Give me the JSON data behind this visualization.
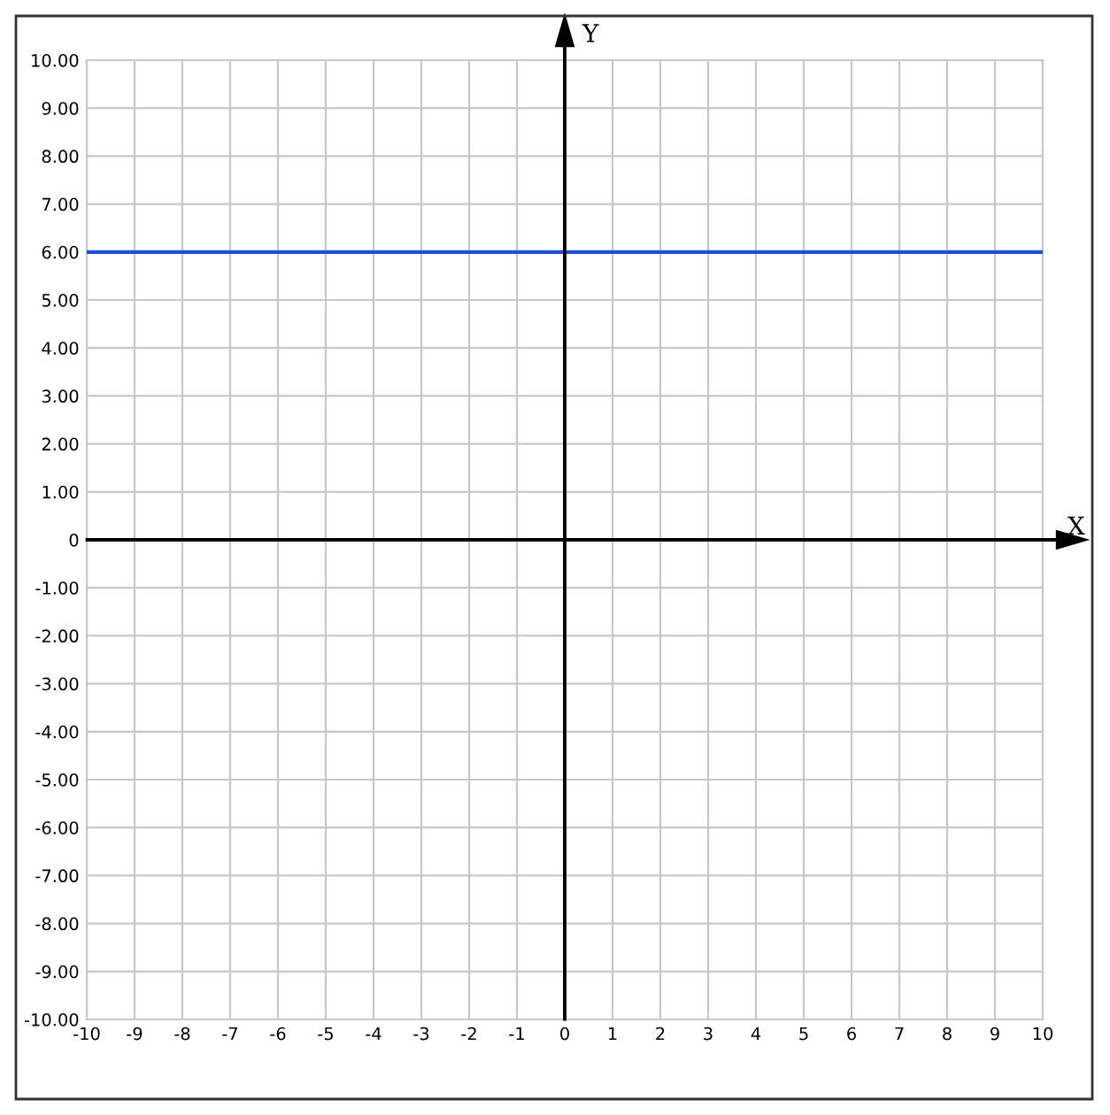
{
  "chart_data": {
    "type": "line",
    "xlabel": "X",
    "ylabel": "Y",
    "series": [
      {
        "color": "#2050d8",
        "x": [
          -10,
          10
        ],
        "values": [
          6,
          6
        ]
      }
    ],
    "xlim": [
      -10,
      10
    ],
    "ylim": [
      -10,
      10
    ],
    "xticks": [
      -10,
      -9,
      -8,
      -7,
      -6,
      -5,
      -4,
      -3,
      -2,
      -1,
      0,
      1,
      2,
      3,
      4,
      5,
      6,
      7,
      8,
      9,
      10
    ],
    "yticks": [
      {
        "value": 10,
        "label": "10.00"
      },
      {
        "value": 9,
        "label": "9.00"
      },
      {
        "value": 8,
        "label": "8.00"
      },
      {
        "value": 7,
        "label": "7.00"
      },
      {
        "value": 6,
        "label": "6.00"
      },
      {
        "value": 5,
        "label": "5.00"
      },
      {
        "value": 4,
        "label": "4.00"
      },
      {
        "value": 3,
        "label": "3.00"
      },
      {
        "value": 2,
        "label": "2.00"
      },
      {
        "value": 1,
        "label": "1.00"
      },
      0,
      {
        "value": -1,
        "label": "-1.00"
      },
      {
        "value": -2,
        "label": "-2.00"
      },
      {
        "value": -3,
        "label": "-3.00"
      },
      {
        "value": -4,
        "label": "-4.00"
      },
      {
        "value": -5,
        "label": "-5.00"
      },
      {
        "value": -6,
        "label": "-6.00"
      },
      {
        "value": -7,
        "label": "-7.00"
      },
      {
        "value": -8,
        "label": "-8.00"
      },
      {
        "value": -9,
        "label": "-9.00"
      },
      {
        "value": -10,
        "label": "-10.00"
      }
    ],
    "grid": true,
    "legend": false,
    "marker": "none",
    "line_style": "solid"
  }
}
